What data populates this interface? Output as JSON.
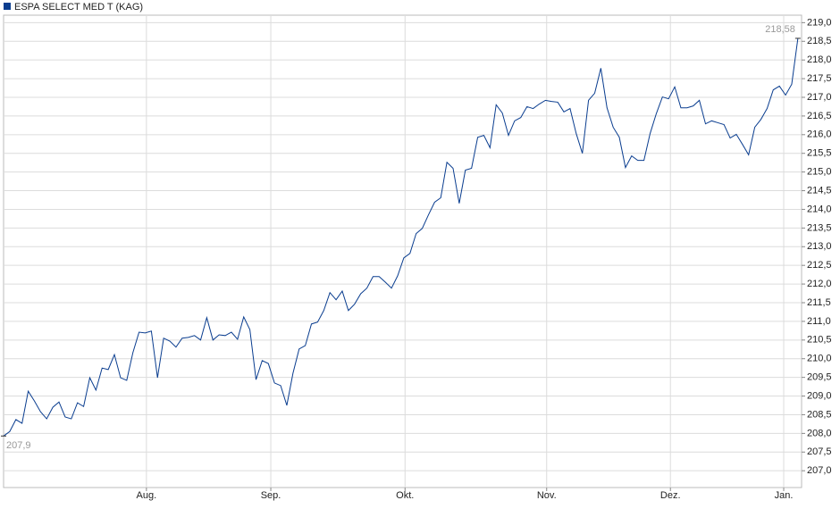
{
  "chart_data": {
    "type": "line",
    "series": [
      {
        "name": "ESPA SELECT MED T (KAG)",
        "color": "#0a3d8f",
        "values": [
          207.93,
          208.05,
          208.37,
          208.27,
          209.13,
          208.87,
          208.58,
          208.39,
          208.7,
          208.84,
          208.44,
          208.39,
          208.82,
          208.72,
          209.49,
          209.16,
          209.75,
          209.71,
          210.11,
          209.49,
          209.42,
          210.16,
          210.71,
          210.69,
          210.74,
          209.49,
          210.55,
          210.47,
          210.31,
          210.55,
          210.57,
          210.62,
          210.5,
          211.1,
          210.5,
          210.64,
          210.62,
          210.71,
          210.52,
          211.12,
          210.78,
          209.44,
          209.95,
          209.87,
          209.35,
          209.28,
          208.75,
          209.61,
          210.26,
          210.35,
          210.93,
          210.98,
          211.29,
          211.77,
          211.58,
          211.81,
          211.29,
          211.46,
          211.74,
          211.89,
          212.2,
          212.2,
          212.05,
          211.89,
          212.22,
          212.7,
          212.82,
          213.35,
          213.49,
          213.85,
          214.19,
          214.31,
          215.26,
          215.1,
          214.16,
          215.05,
          215.1,
          215.93,
          215.98,
          215.65,
          216.8,
          216.58,
          215.98,
          216.37,
          216.46,
          216.75,
          216.7,
          216.82,
          216.92,
          216.89,
          216.87,
          216.61,
          216.7,
          216.03,
          215.5,
          216.92,
          217.11,
          217.78,
          216.72,
          216.2,
          215.93,
          215.12,
          215.43,
          215.31,
          215.31,
          216.03,
          216.56,
          217.01,
          216.96,
          217.28,
          216.72,
          216.72,
          216.77,
          216.92,
          216.29,
          216.37,
          216.32,
          216.27,
          215.91,
          216.01,
          215.74,
          215.46,
          216.2,
          216.41,
          216.7,
          217.2,
          217.3,
          217.06,
          217.35,
          218.58
        ]
      }
    ],
    "start_label": "207,9",
    "end_label": "218,58",
    "xlim": [
      0,
      129.6
    ],
    "xticks": [
      {
        "value": 23.2,
        "label": "Aug."
      },
      {
        "value": 43.4,
        "label": "Sep."
      },
      {
        "value": 65.2,
        "label": "Okt."
      },
      {
        "value": 88.2,
        "label": "Nov."
      },
      {
        "value": 108.3,
        "label": "Dez."
      },
      {
        "value": 126.7,
        "label": "Jan."
      }
    ],
    "ylim": [
      206.55,
      219.2
    ],
    "yticks": [
      {
        "value": 207,
        "label": "207,0"
      },
      {
        "value": 207.5,
        "label": "207,5"
      },
      {
        "value": 208,
        "label": "208,0"
      },
      {
        "value": 208.5,
        "label": "208,5"
      },
      {
        "value": 209,
        "label": "209,0"
      },
      {
        "value": 209.5,
        "label": "209,5"
      },
      {
        "value": 210,
        "label": "210,0"
      },
      {
        "value": 210.5,
        "label": "210,5"
      },
      {
        "value": 211,
        "label": "211,0"
      },
      {
        "value": 211.5,
        "label": "211,5"
      },
      {
        "value": 212,
        "label": "212,0"
      },
      {
        "value": 212.5,
        "label": "212,5"
      },
      {
        "value": 213,
        "label": "213,0"
      },
      {
        "value": 213.5,
        "label": "213,5"
      },
      {
        "value": 214,
        "label": "214,0"
      },
      {
        "value": 214.5,
        "label": "214,5"
      },
      {
        "value": 215,
        "label": "215,0"
      },
      {
        "value": 215.5,
        "label": "215,5"
      },
      {
        "value": 216,
        "label": "216,0"
      },
      {
        "value": 216.5,
        "label": "216,5"
      },
      {
        "value": 217,
        "label": "217,0"
      },
      {
        "value": 217.5,
        "label": "217,5"
      },
      {
        "value": 218,
        "label": "218,0"
      },
      {
        "value": 218.5,
        "label": "218,5"
      },
      {
        "value": 219,
        "label": "219,0"
      }
    ],
    "grid": true
  }
}
